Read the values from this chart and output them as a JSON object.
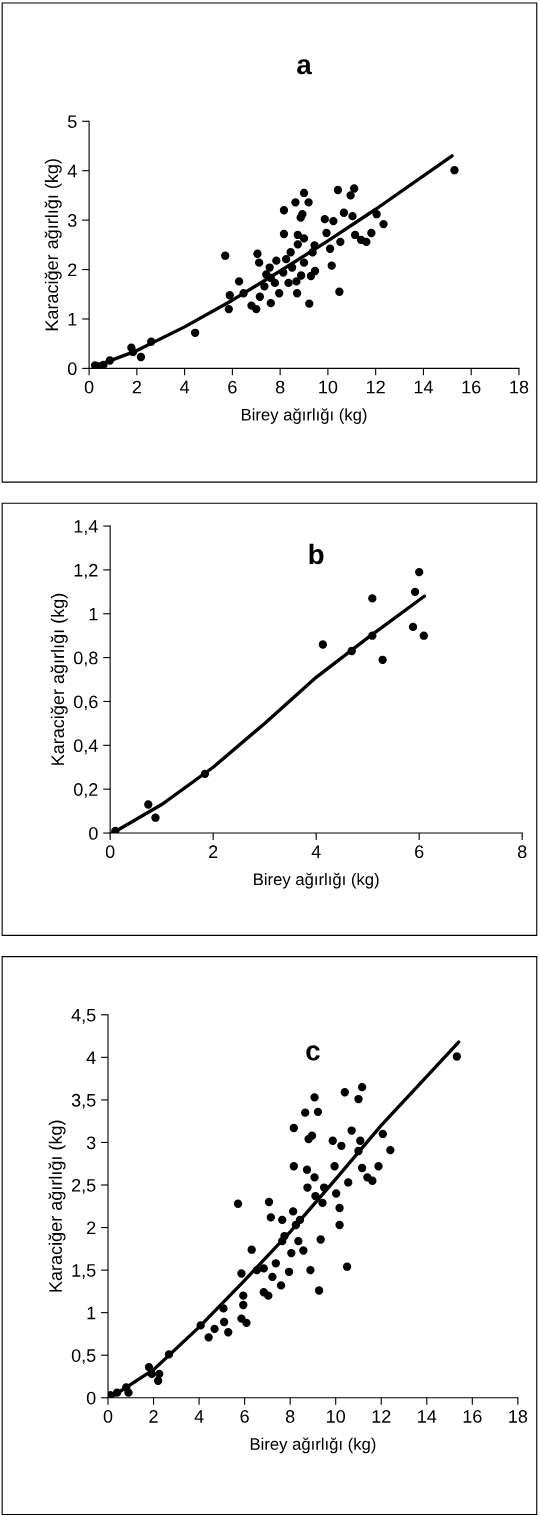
{
  "chart_data": [
    {
      "type": "scatter",
      "title": "a",
      "xlabel": "Birey ağırlığı (kg)",
      "ylabel": "Karaciğer ağırlığı (kg)",
      "xlim": [
        0,
        18
      ],
      "ylim": [
        0,
        5
      ],
      "xticks": [
        0,
        2,
        4,
        6,
        8,
        10,
        12,
        14,
        16,
        18
      ],
      "yticks": [
        0,
        1,
        2,
        3,
        4,
        5
      ],
      "grid": false,
      "legend": false,
      "series": [
        {
          "marker": "circle",
          "color": "#000000",
          "x": [
            0.25,
            0.4,
            0.6,
            0.87,
            1.77,
            1.84,
            2.17,
            2.6,
            4.44,
            5.7,
            5.89,
            5.85,
            6.28,
            6.47,
            6.8,
            7.0,
            7.05,
            7.12,
            7.15,
            7.34,
            7.61,
            7.56,
            7.61,
            7.78,
            7.84,
            7.96,
            8.13,
            8.16,
            8.16,
            8.25,
            8.35,
            8.5,
            8.64,
            8.68,
            8.71,
            8.74,
            8.74,
            8.86,
            8.93,
            9.0,
            9.0,
            9.19,
            9.0,
            9.22,
            9.29,
            9.36,
            9.44,
            9.46,
            9.87,
            9.94,
            10.09,
            10.16,
            10.23,
            10.42,
            10.48,
            10.52,
            10.67,
            10.95,
            11.1,
            11.03,
            11.14,
            11.39,
            11.61,
            11.82,
            12.04,
            12.33,
            15.3,
            8.88,
            8.44,
            7.42
          ],
          "values": [
            0.06,
            0.04,
            0.07,
            0.16,
            0.42,
            0.33,
            0.23,
            0.54,
            0.72,
            2.28,
            1.48,
            1.2,
            1.76,
            1.52,
            1.27,
            1.2,
            2.32,
            2.14,
            1.45,
            1.66,
            1.32,
            2.04,
            1.83,
            1.73,
            2.18,
            1.52,
            1.94,
            3.2,
            2.72,
            2.21,
            1.73,
            2.04,
            3.36,
            1.76,
            1.52,
            2.51,
            2.7,
            3.05,
            3.12,
            2.63,
            3.55,
            3.36,
            2.14,
            1.31,
            1.87,
            2.35,
            2.49,
            1.97,
            3.02,
            2.74,
            2.42,
            2.08,
            2.98,
            3.61,
            1.55,
            2.56,
            3.15,
            3.5,
            3.64,
            3.08,
            2.7,
            2.6,
            2.56,
            2.74,
            3.12,
            2.92,
            4.01,
            1.88,
            2.35,
            1.9
          ]
        },
        {
          "type": "line",
          "marker": "none",
          "color": "#000000",
          "x": [
            0.2,
            2,
            4,
            6,
            8,
            10,
            12,
            15.2
          ],
          "values": [
            0.03,
            0.36,
            0.84,
            1.38,
            1.97,
            2.58,
            3.22,
            4.3
          ]
        }
      ]
    },
    {
      "type": "scatter",
      "title": "b",
      "xlabel": "Birey ağırlığı (kg)",
      "ylabel": "Karaciğer ağırlığı (kg)",
      "xlim": [
        0,
        8
      ],
      "ylim": [
        0,
        1.4
      ],
      "xticks": [
        0,
        2,
        4,
        6,
        8
      ],
      "yticks": [
        0,
        {
          "value": 0.2,
          "label": "0,2"
        },
        {
          "value": 0.4,
          "label": "0,4"
        },
        {
          "value": 0.6,
          "label": "0,6"
        },
        {
          "value": 0.8,
          "label": "0,8"
        },
        1,
        {
          "value": 1.2,
          "label": "1,2"
        },
        {
          "value": 1.4,
          "label": "1,4"
        }
      ],
      "grid": false,
      "legend": false,
      "series": [
        {
          "marker": "circle",
          "color": "#000000",
          "x": [
            0.1,
            0.74,
            0.88,
            1.84,
            4.13,
            4.69,
            5.09,
            5.09,
            5.29,
            5.88,
            5.92,
            6.0,
            6.09
          ],
          "values": [
            0.01,
            0.13,
            0.07,
            0.27,
            0.86,
            0.83,
            1.07,
            0.9,
            0.79,
            0.94,
            1.1,
            1.19,
            0.9
          ]
        },
        {
          "type": "line",
          "marker": "none",
          "color": "#000000",
          "x": [
            0.05,
            1,
            2,
            3,
            4,
            5,
            6.1
          ],
          "values": [
            0.0,
            0.13,
            0.3,
            0.5,
            0.71,
            0.89,
            1.08
          ]
        }
      ]
    },
    {
      "type": "scatter",
      "title": "c",
      "xlabel": "Birey ağırlığı (kg)",
      "ylabel": "Karaciğer ağırlığı (kg)",
      "xlim": [
        0,
        18
      ],
      "ylim": [
        0,
        4.5
      ],
      "xticks": [
        0,
        2,
        4,
        6,
        8,
        10,
        12,
        14,
        16,
        18
      ],
      "yticks": [
        0,
        {
          "value": 0.5,
          "label": "0,5"
        },
        1,
        {
          "value": 1.5,
          "label": "1,5"
        },
        2,
        {
          "value": 2.5,
          "label": "2,5"
        },
        3,
        {
          "value": 3.5,
          "label": "3,5"
        },
        4,
        {
          "value": 4.5,
          "label": "4,5"
        }
      ],
      "grid": false,
      "legend": false,
      "series": [
        {
          "marker": "circle",
          "color": "#000000",
          "x": [
            0.1,
            0.4,
            0.8,
            0.9,
            1.8,
            1.92,
            2.2,
            2.25,
            2.68,
            4.07,
            4.42,
            4.68,
            5.07,
            5.1,
            5.28,
            5.71,
            5.86,
            5.94,
            5.94,
            5.86,
            6.08,
            6.31,
            6.54,
            6.84,
            6.84,
            7.04,
            7.07,
            7.15,
            7.22,
            7.37,
            7.6,
            7.65,
            7.65,
            7.75,
            7.95,
            8.05,
            8.16,
            8.16,
            8.13,
            8.25,
            8.36,
            8.66,
            8.58,
            8.81,
            8.74,
            8.76,
            8.89,
            8.96,
            9.07,
            9.22,
            9.07,
            9.11,
            9.27,
            9.34,
            9.49,
            9.87,
            9.95,
            10.02,
            10.17,
            10.25,
            10.4,
            10.5,
            10.55,
            10.7,
            11.0,
            11.16,
            11.08,
            11.0,
            11.16,
            11.39,
            11.61,
            11.88,
            12.07,
            12.4,
            15.32,
            10.17,
            9.42,
            8.43
          ],
          "values": [
            0.03,
            0.06,
            0.12,
            0.06,
            0.36,
            0.28,
            0.2,
            0.28,
            0.51,
            0.85,
            0.71,
            0.81,
            1.05,
            0.89,
            0.77,
            2.28,
            1.46,
            1.2,
            1.09,
            0.93,
            0.88,
            1.74,
            1.5,
            1.52,
            1.24,
            1.2,
            2.3,
            2.12,
            1.42,
            1.58,
            1.32,
            2.09,
            1.84,
            1.9,
            1.48,
            1.7,
            3.17,
            2.72,
            2.19,
            2.03,
            1.84,
            3.35,
            1.73,
            3.04,
            2.68,
            2.47,
            1.5,
            3.08,
            3.53,
            3.36,
            2.59,
            2.37,
            1.26,
            1.86,
            2.47,
            3.02,
            2.72,
            2.4,
            2.03,
            2.96,
            3.59,
            1.54,
            2.53,
            3.14,
            3.51,
            3.65,
            3.02,
            2.9,
            2.7,
            2.59,
            2.55,
            2.72,
            3.1,
            2.91,
            4.01,
            2.23,
            2.29,
            2.09
          ]
        },
        {
          "type": "line",
          "marker": "none",
          "color": "#000000",
          "x": [
            0.1,
            2,
            4,
            6,
            8,
            10,
            12,
            15.4
          ],
          "values": [
            0.0,
            0.33,
            0.83,
            1.38,
            1.95,
            2.57,
            3.2,
            4.18
          ]
        }
      ]
    }
  ]
}
